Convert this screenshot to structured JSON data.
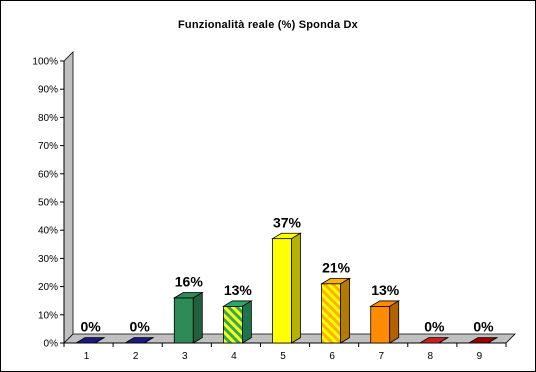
{
  "chart_data": {
    "type": "bar",
    "title": "Funzionalità reale (%) Sponda Dx",
    "xlabel": "",
    "ylabel": "",
    "categories": [
      "1",
      "2",
      "3",
      "4",
      "5",
      "6",
      "7",
      "8",
      "9"
    ],
    "values": [
      0,
      0,
      16,
      13,
      37,
      21,
      13,
      0,
      0
    ],
    "data_labels": [
      "0%",
      "0%",
      "16%",
      "13%",
      "37%",
      "21%",
      "13%",
      "0%",
      "0%"
    ],
    "ylim": [
      0,
      100
    ],
    "yticks": [
      0,
      10,
      20,
      30,
      40,
      50,
      60,
      70,
      80,
      90,
      100
    ],
    "ytick_labels": [
      "0%",
      "10%",
      "20%",
      "30%",
      "40%",
      "50%",
      "60%",
      "70%",
      "80%",
      "90%",
      "100%"
    ],
    "grid": false,
    "legend": "none",
    "bar_colors": [
      "#1a1a80",
      "#1a1a80",
      "#2e8b57",
      "#2aa86a",
      "#ffff00",
      "#ffb000",
      "#ff8c00",
      "#cc1e1e",
      "#990000"
    ],
    "bar_patterns": [
      "solid",
      "solid",
      "solid",
      "stripe-yellow",
      "solid",
      "stripe-yellow",
      "solid",
      "solid",
      "solid"
    ]
  }
}
